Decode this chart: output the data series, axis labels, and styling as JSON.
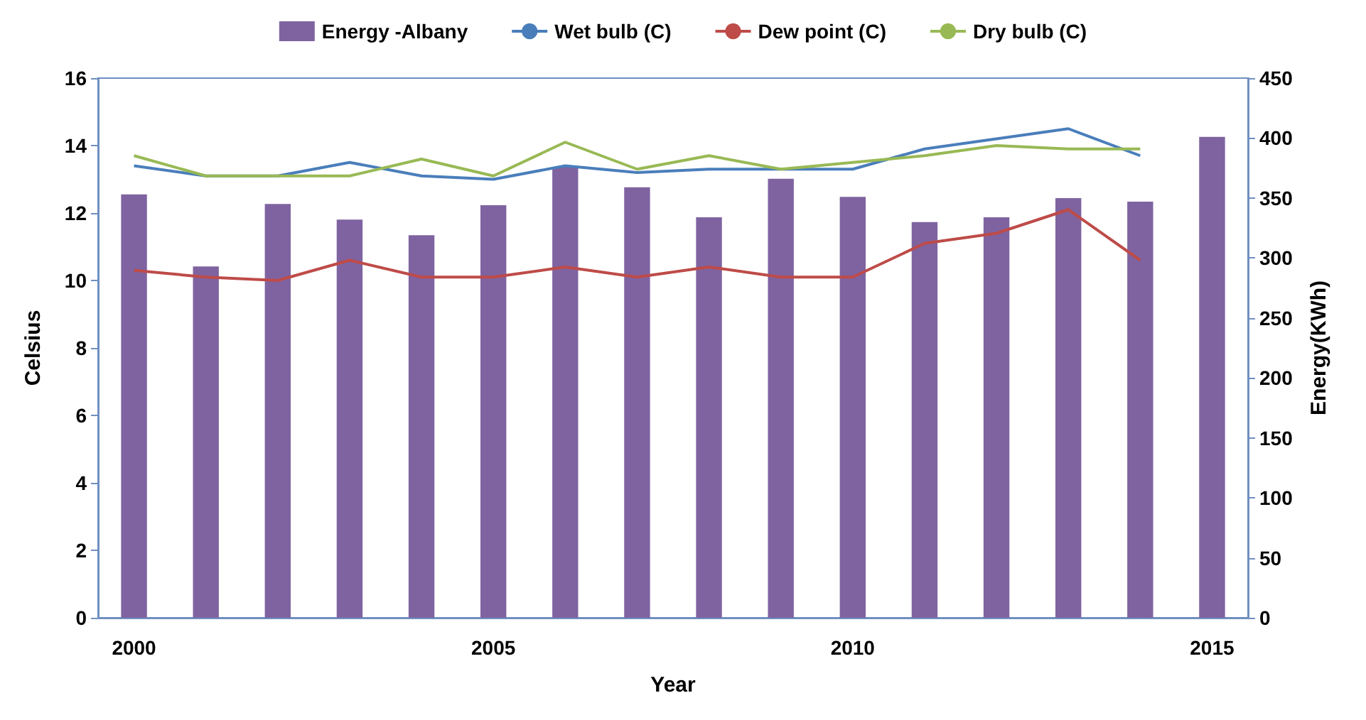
{
  "chart_data": {
    "type": "line",
    "xlabel": "Year",
    "ylabel": "Celsius",
    "y2label": "Energy(KWh)",
    "categories": [
      "2000",
      null,
      null,
      null,
      null,
      "2005",
      null,
      null,
      null,
      null,
      "2010",
      null,
      null,
      null,
      null,
      "2015"
    ],
    "series": [
      {
        "name": "Energy -Albany",
        "type": "bar",
        "axis": "y2",
        "color": "#7f63a1",
        "values": [
          353,
          293,
          345,
          332,
          319,
          344,
          376,
          359,
          334,
          366,
          351,
          330,
          334,
          350,
          347,
          401
        ]
      },
      {
        "name": "Wet bulb (C)",
        "color": "#4a7ebb",
        "values": [
          13.4,
          13.1,
          13.1,
          13.5,
          13.1,
          13.0,
          13.4,
          13.2,
          13.3,
          13.3,
          13.3,
          13.9,
          14.2,
          14.5,
          13.7,
          null
        ]
      },
      {
        "name": "Dew point (C)",
        "color": "#be4b48",
        "values": [
          10.3,
          10.1,
          10.0,
          10.6,
          10.1,
          10.1,
          10.4,
          10.1,
          10.4,
          10.1,
          10.1,
          11.1,
          11.4,
          12.1,
          10.6,
          null
        ]
      },
      {
        "name": "Dry bulb (C)",
        "color": "#98b954",
        "values": [
          13.7,
          13.1,
          13.1,
          13.1,
          13.6,
          13.1,
          14.1,
          13.3,
          13.7,
          13.3,
          13.5,
          13.7,
          14.0,
          13.9,
          13.9,
          null
        ]
      }
    ],
    "ylim": [
      0,
      16
    ],
    "yticks": [
      0,
      2,
      4,
      6,
      8,
      10,
      12,
      14,
      16
    ],
    "y2lim": [
      0,
      450
    ],
    "y2ticks": [
      0,
      50,
      100,
      150,
      200,
      250,
      300,
      350,
      400,
      450
    ],
    "grid": false,
    "legend": "top",
    "marker": "none",
    "line_style": "solid"
  }
}
